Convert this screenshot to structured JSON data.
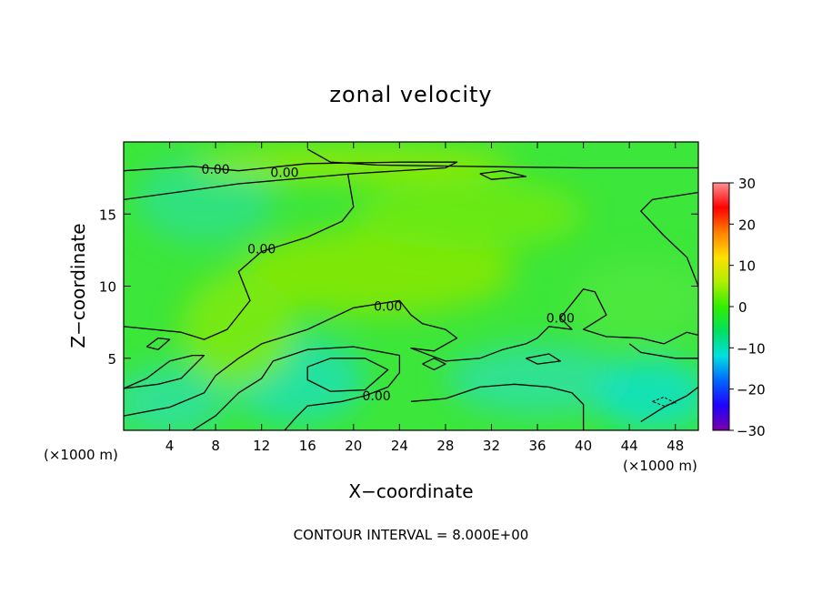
{
  "chart_data": {
    "type": "heatmap",
    "title": "zonal velocity",
    "xlabel": "X−coordinate",
    "ylabel": "Z−coordinate",
    "x_unit_left": "(×1000 m)",
    "x_unit_right": "(×1000 m)",
    "xlim": [
      0,
      50
    ],
    "ylim": [
      0,
      20
    ],
    "xticks": [
      4,
      8,
      12,
      16,
      20,
      24,
      28,
      32,
      36,
      40,
      44,
      48
    ],
    "yticks": [
      5,
      10,
      15
    ],
    "contour_label": "0.00",
    "contour_interval_text": "CONTOUR INTERVAL = 8.000E+00",
    "colorbar": {
      "range": [
        -30,
        30
      ],
      "ticks": [
        30,
        20,
        10,
        0,
        -10,
        -20,
        -30
      ],
      "colors": [
        "#7a00a8",
        "#2000ff",
        "#0066ff",
        "#00e0e0",
        "#00e060",
        "#33ee00",
        "#b0ee00",
        "#ffe000",
        "#ff8000",
        "#ff0000",
        "#ff9090"
      ]
    },
    "contour_labels": [
      {
        "x": 8,
        "z": 18.1
      },
      {
        "x": 14,
        "z": 17.9
      },
      {
        "x": 12,
        "z": 12.6
      },
      {
        "x": 23,
        "z": 8.6
      },
      {
        "x": 38,
        "z": 7.8
      },
      {
        "x": 22,
        "z": 2.4
      }
    ],
    "zero_contours": [
      [
        [
          0,
          18.0
        ],
        [
          6,
          18.3
        ],
        [
          10,
          18.0
        ],
        [
          16,
          18.5
        ],
        [
          24,
          18.6
        ],
        [
          29,
          18.6
        ],
        [
          28,
          18.2
        ],
        [
          20,
          17.8
        ],
        [
          10,
          17.1
        ],
        [
          0,
          16.0
        ]
      ],
      [
        [
          50,
          18.2
        ],
        [
          40,
          18.2
        ],
        [
          30,
          18.3
        ],
        [
          22,
          18.4
        ],
        [
          18,
          18.6
        ],
        [
          16,
          19.5
        ]
      ],
      [
        [
          31,
          17.8
        ],
        [
          33,
          18.0
        ],
        [
          35,
          17.6
        ],
        [
          32,
          17.4
        ],
        [
          31,
          17.8
        ]
      ],
      [
        [
          0,
          7.2
        ],
        [
          5,
          6.8
        ],
        [
          7,
          6.3
        ],
        [
          9,
          7.0
        ],
        [
          11,
          9.0
        ],
        [
          10,
          11.0
        ],
        [
          12,
          12.4
        ],
        [
          16,
          13.4
        ],
        [
          19,
          14.5
        ],
        [
          20,
          15.5
        ],
        [
          19.5,
          17.8
        ]
      ],
      [
        [
          0,
          1.0
        ],
        [
          4,
          1.6
        ],
        [
          7,
          2.6
        ],
        [
          8,
          3.8
        ],
        [
          10,
          5.0
        ],
        [
          12,
          6.0
        ],
        [
          16,
          7.0
        ],
        [
          20,
          8.5
        ],
        [
          24,
          9.0
        ],
        [
          25,
          8.0
        ],
        [
          26,
          7.4
        ],
        [
          28,
          7.0
        ],
        [
          29,
          6.4
        ],
        [
          27,
          5.5
        ],
        [
          25,
          5.7
        ],
        [
          28,
          4.8
        ],
        [
          31,
          5.0
        ],
        [
          33,
          5.6
        ],
        [
          35,
          6.0
        ],
        [
          36,
          6.4
        ],
        [
          37,
          7.2
        ],
        [
          39,
          7.0
        ],
        [
          38,
          7.8
        ],
        [
          40,
          9.8
        ],
        [
          41,
          9.6
        ],
        [
          42,
          8.0
        ],
        [
          40,
          7.0
        ],
        [
          42,
          6.5
        ],
        [
          45,
          6.4
        ],
        [
          47,
          6.0
        ],
        [
          49,
          6.8
        ],
        [
          50,
          6.6
        ]
      ],
      [
        [
          0,
          2.9
        ],
        [
          2,
          3.6
        ],
        [
          4,
          4.8
        ],
        [
          6,
          5.2
        ],
        [
          7,
          5.2
        ],
        [
          5,
          3.6
        ],
        [
          3,
          3.2
        ],
        [
          0,
          2.9
        ]
      ],
      [
        [
          2,
          5.8
        ],
        [
          3,
          6.4
        ],
        [
          4,
          6.3
        ],
        [
          3,
          5.6
        ],
        [
          2,
          5.8
        ]
      ],
      [
        [
          6,
          0
        ],
        [
          8,
          1.0
        ],
        [
          10,
          2.6
        ],
        [
          12,
          3.6
        ],
        [
          13,
          4.8
        ],
        [
          16,
          5.6
        ],
        [
          20,
          5.8
        ],
        [
          24,
          5.2
        ],
        [
          24,
          4.0
        ],
        [
          23,
          3.0
        ],
        [
          21,
          2.4
        ],
        [
          19,
          2.0
        ],
        [
          16,
          1.7
        ],
        [
          15,
          0.9
        ],
        [
          14,
          0
        ]
      ],
      [
        [
          16,
          4.4
        ],
        [
          18,
          5.0
        ],
        [
          21,
          5.0
        ],
        [
          23,
          4.2
        ],
        [
          21,
          2.8
        ],
        [
          18,
          2.7
        ],
        [
          16,
          3.5
        ],
        [
          16,
          4.4
        ]
      ],
      [
        [
          26,
          4.6
        ],
        [
          27,
          5.0
        ],
        [
          28,
          4.6
        ],
        [
          27,
          4.2
        ],
        [
          26,
          4.6
        ]
      ],
      [
        [
          25,
          2.0
        ],
        [
          28,
          2.2
        ],
        [
          31,
          3.0
        ],
        [
          34,
          3.2
        ],
        [
          37,
          3.0
        ],
        [
          39,
          2.6
        ],
        [
          40,
          1.8
        ],
        [
          40,
          0
        ]
      ],
      [
        [
          35,
          5.0
        ],
        [
          37,
          5.3
        ],
        [
          38,
          4.8
        ],
        [
          36,
          4.6
        ],
        [
          35,
          5.0
        ]
      ],
      [
        [
          44,
          6.0
        ],
        [
          45,
          5.4
        ],
        [
          48,
          5.0
        ],
        [
          50,
          5.0
        ]
      ],
      [
        [
          45,
          0.6
        ],
        [
          47,
          1.6
        ],
        [
          49,
          2.4
        ],
        [
          50,
          3.0
        ]
      ],
      [
        [
          50,
          10
        ],
        [
          49,
          12
        ],
        [
          47,
          13.5
        ],
        [
          45,
          15.2
        ],
        [
          46,
          16.0
        ],
        [
          50,
          16.5
        ]
      ]
    ],
    "negative_contours": [
      [
        [
          46,
          2.0
        ],
        [
          47,
          2.3
        ],
        [
          48,
          1.9
        ],
        [
          47,
          1.7
        ],
        [
          46,
          2.0
        ]
      ]
    ],
    "blobs": [
      {
        "x": 7,
        "z": 16,
        "r": 6,
        "rz": 3,
        "color": "#2fe08a"
      },
      {
        "x": 4,
        "z": 2,
        "r": 5,
        "rz": 2.5,
        "color": "#30e0a0"
      },
      {
        "x": 15,
        "z": 3.5,
        "r": 6,
        "rz": 3,
        "color": "#1fe0b0"
      },
      {
        "x": 36,
        "z": 3.5,
        "r": 8,
        "rz": 2.5,
        "color": "#2fe0a0"
      },
      {
        "x": 46,
        "z": 2.5,
        "r": 5,
        "rz": 2.5,
        "color": "#10e0c8"
      },
      {
        "x": 22,
        "z": 11,
        "r": 12,
        "rz": 3,
        "color": "#88e800"
      },
      {
        "x": 10,
        "z": 7,
        "r": 5,
        "rz": 4,
        "color": "#80ea10"
      },
      {
        "x": 30,
        "z": 15,
        "r": 10,
        "rz": 2.5,
        "color": "#70ea10"
      },
      {
        "x": 20,
        "z": 18.5,
        "r": 14,
        "rz": 1.2,
        "color": "#9aea00"
      },
      {
        "x": 45,
        "z": 9,
        "r": 6,
        "rz": 3,
        "color": "#50e840"
      }
    ]
  }
}
